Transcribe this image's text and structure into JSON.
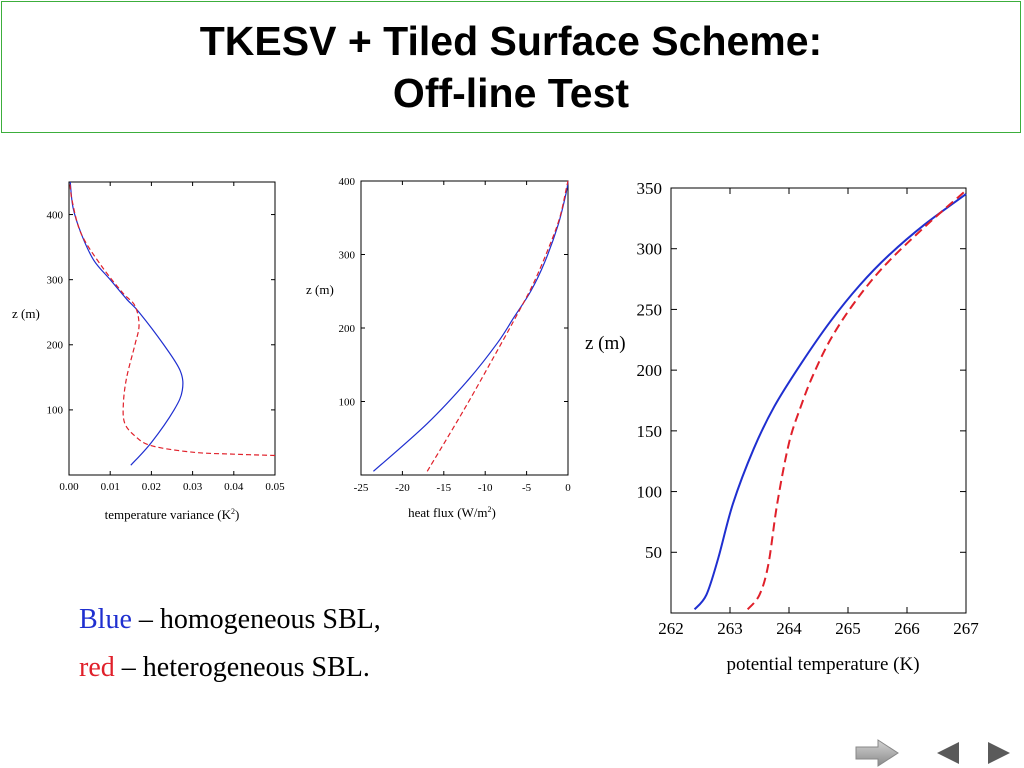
{
  "slide": {
    "title_line1": "TKESV + Tiled Surface Scheme:",
    "title_line2": "Off-line Test"
  },
  "legend": {
    "blue_word": "Blue",
    "blue_rest": " – homogeneous SBL,",
    "red_word": "red",
    "red_rest": " – heterogeneous SBL.",
    "blue_color": "#1f2fd0",
    "red_color": "#e0202a"
  },
  "chart_data": [
    {
      "type": "line",
      "xlabel": "temperature variance (K",
      "xlabel_sup": "2",
      "xlabel_end": ")",
      "ylabel": "z (m)",
      "xlim": [
        0,
        0.05
      ],
      "ylim": [
        0,
        450
      ],
      "xticks": [
        0,
        0.01,
        0.02,
        0.03,
        0.04,
        0.05
      ],
      "xtick_labels": [
        "0.00",
        "0.01",
        "0.02",
        "0.03",
        "0.04",
        "0.05"
      ],
      "yticks": [
        100,
        200,
        300,
        400
      ],
      "ytick_labels": [
        "100",
        "200",
        "300",
        "400"
      ],
      "series": [
        {
          "color": "#1f2fd0",
          "dashed": false,
          "x": [
            0.015,
            0.02,
            0.0255,
            0.0275,
            0.027,
            0.023,
            0.017,
            0.014,
            0.01,
            0.006,
            0.003,
            0.001,
            0.0003
          ],
          "y": [
            15,
            50,
            100,
            130,
            160,
            200,
            250,
            270,
            300,
            330,
            370,
            410,
            450
          ]
        },
        {
          "color": "#e0202a",
          "dashed": true,
          "x": [
            0.05,
            0.04,
            0.03,
            0.02,
            0.016,
            0.0135,
            0.0132,
            0.014,
            0.016,
            0.017,
            0.016,
            0.013,
            0.008,
            0.003,
            0.0008,
            0.0002
          ],
          "y": [
            30,
            32,
            35,
            45,
            60,
            80,
            110,
            150,
            200,
            230,
            260,
            280,
            320,
            370,
            420,
            450
          ]
        }
      ]
    },
    {
      "type": "line",
      "xlabel": "heat flux (W/m",
      "xlabel_sup": "2",
      "xlabel_end": ")",
      "ylabel": "z (m)",
      "xlim": [
        -25,
        0
      ],
      "ylim": [
        0,
        400
      ],
      "xticks": [
        -25,
        -20,
        -15,
        -10,
        -5,
        0
      ],
      "xtick_labels": [
        "-25",
        "-20",
        "-15",
        "-10",
        "-5",
        "0"
      ],
      "yticks": [
        100,
        200,
        300,
        400
      ],
      "ytick_labels": [
        "100",
        "200",
        "300",
        "400"
      ],
      "series": [
        {
          "color": "#1f2fd0",
          "dashed": false,
          "x": [
            -23.5,
            -17.0,
            -12.0,
            -8.5,
            -6.5,
            -4.5,
            -2.8,
            -1.2,
            -0.2,
            0
          ],
          "y": [
            5,
            70,
            130,
            180,
            215,
            250,
            290,
            340,
            385,
            400
          ]
        },
        {
          "color": "#e0202a",
          "dashed": true,
          "x": [
            -17.0,
            -12.5,
            -8.5,
            -6.3,
            -4.2,
            -2.3,
            -1.0,
            -0.2,
            0
          ],
          "y": [
            5,
            90,
            170,
            215,
            260,
            310,
            350,
            390,
            400
          ]
        }
      ]
    },
    {
      "type": "line",
      "xlabel": "potential temperature (K)",
      "ylabel": "z (m)",
      "xlim": [
        262,
        267
      ],
      "ylim": [
        0,
        350
      ],
      "xticks": [
        262,
        263,
        264,
        265,
        266,
        267
      ],
      "xtick_labels": [
        "262",
        "263",
        "264",
        "265",
        "266",
        "267"
      ],
      "yticks": [
        50,
        100,
        150,
        200,
        250,
        300,
        350
      ],
      "ytick_labels": [
        "50",
        "100",
        "150",
        "200",
        "250",
        "300",
        "350"
      ],
      "series": [
        {
          "color": "#1f2fd0",
          "dashed": false,
          "x": [
            262.4,
            262.6,
            262.8,
            263.05,
            263.4,
            263.75,
            264.2,
            264.7,
            265.2,
            265.7,
            266.3,
            267.0
          ],
          "y": [
            3,
            15,
            45,
            90,
            135,
            170,
            205,
            240,
            270,
            295,
            320,
            345
          ]
        },
        {
          "color": "#e0202a",
          "dashed": true,
          "x": [
            263.3,
            263.5,
            263.65,
            263.8,
            264.0,
            264.2,
            264.4,
            264.7,
            265.1,
            265.6,
            266.3,
            267.0
          ],
          "y": [
            3,
            15,
            40,
            90,
            140,
            170,
            195,
            225,
            255,
            285,
            318,
            348
          ]
        }
      ]
    }
  ]
}
